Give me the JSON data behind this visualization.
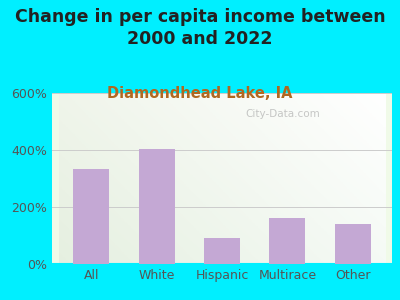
{
  "title_line1": "Change in per capita income between",
  "title_line2": "2000 and 2022",
  "subtitle": "Diamondhead Lake, IA",
  "categories": [
    "All",
    "White",
    "Hispanic",
    "Multirace",
    "Other"
  ],
  "values": [
    335,
    405,
    90,
    160,
    140
  ],
  "bar_color": "#c4a8d4",
  "background_outer": "#00efff",
  "ylabel_ticks": [
    "0%",
    "200%",
    "400%",
    "600%"
  ],
  "ytick_vals": [
    0,
    200,
    400,
    600
  ],
  "ylim": [
    0,
    600
  ],
  "title_fontsize": 12.5,
  "subtitle_fontsize": 10.5,
  "subtitle_color": "#b06820",
  "tick_fontsize": 9,
  "tick_color": "#555555",
  "watermark": "City-Data.com",
  "grid_color": "#cccccc",
  "title_color": "#222222"
}
